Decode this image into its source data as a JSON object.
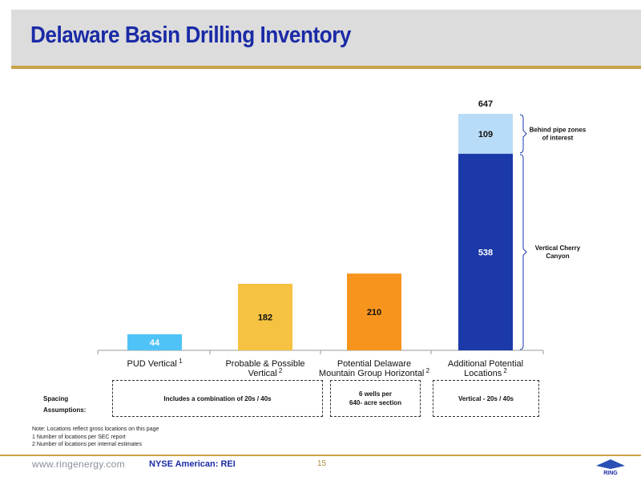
{
  "header": {
    "title": "Delaware Basin Drilling Inventory"
  },
  "chart_data": {
    "type": "bar",
    "stacked": true,
    "categories": [
      [
        "PUD Vertical"
      ],
      [
        "Probable & Possible",
        "Vertical"
      ],
      [
        "Potential Delaware",
        "Mountain Group Horizontal"
      ],
      [
        "Additional Potential",
        "Locations"
      ]
    ],
    "category_superscripts": [
      "1",
      "2",
      "2",
      "2"
    ],
    "segments": [
      {
        "category_index": 0,
        "value": 44,
        "label": "44",
        "color": "#4fc3f7",
        "label_color": "#ffffff"
      },
      {
        "category_index": 1,
        "value": 182,
        "label": "182",
        "color": "#f5c242",
        "label_color": "#111111"
      },
      {
        "category_index": 2,
        "value": 210,
        "label": "210",
        "color": "#f7941d",
        "label_color": "#111111"
      },
      {
        "category_index": 3,
        "value": 538,
        "label": "538",
        "color": "#1b39a8",
        "label_color": "#ffffff"
      },
      {
        "category_index": 3,
        "value": 109,
        "label": "109",
        "color": "#b8dcf7",
        "label_color": "#111111"
      }
    ],
    "totals": [
      {
        "category_index": 3,
        "value": 647,
        "label": "647"
      }
    ],
    "annotations": [
      {
        "segment_index": 4,
        "lines": [
          "Behind pipe zones",
          "of interest"
        ]
      },
      {
        "segment_index": 3,
        "lines": [
          "Vertical Cherry",
          "Canyon"
        ]
      }
    ],
    "ylim": [
      0,
      700
    ],
    "grid": false,
    "legend": "none"
  },
  "spacing": {
    "label": "Spacing",
    "label2": "Assumptions:",
    "box1": "Includes a combination of 20s / 40s",
    "box2_line1": "6 wells per",
    "box2_line2": "640- acre section",
    "box3": "Vertical - 20s / 40s"
  },
  "notes": {
    "line1": "Note: Locations reflect gross locations on this page",
    "line2": "1 Number of locations per SEC report",
    "line3": "2 Number of locations per internal estimates"
  },
  "footer": {
    "url": "www.ringenergy.com",
    "ticker": "NYSE American: REI",
    "page": "15",
    "logo_text": "RING"
  },
  "colors": {
    "title": "#1a2aa6",
    "accent_rule": "#c9a24a",
    "header_band": "#dcdcdc"
  }
}
